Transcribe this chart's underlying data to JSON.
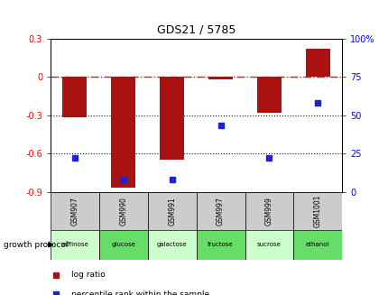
{
  "title": "GDS21 / 5785",
  "categories": [
    "GSM907",
    "GSM990",
    "GSM991",
    "GSM997",
    "GSM999",
    "GSM1001"
  ],
  "protocols": [
    "raffinose",
    "glucose",
    "galactose",
    "fructose",
    "sucrose",
    "ethanol"
  ],
  "log_ratio": [
    -0.32,
    -0.87,
    -0.65,
    -0.02,
    -0.28,
    0.22
  ],
  "percentile_rank": [
    22,
    8,
    8,
    43,
    22,
    58
  ],
  "bar_color": "#aa1111",
  "dot_color": "#2222cc",
  "ylim_left": [
    -0.9,
    0.3
  ],
  "ylim_right": [
    0,
    100
  ],
  "yticks_left": [
    -0.9,
    -0.6,
    -0.3,
    0.0,
    0.3
  ],
  "yticks_right": [
    0,
    25,
    50,
    75,
    100
  ],
  "hline_color": "#cc2222",
  "dotted_line_color": "#111111",
  "protocol_colors": [
    "#ccffcc",
    "#66dd66",
    "#ccffcc",
    "#66dd66",
    "#ccffcc",
    "#66dd66"
  ],
  "gsm_color": "#cccccc",
  "background_color": "#ffffff",
  "legend_label_ratio": "log ratio",
  "legend_label_pct": "percentile rank within the sample",
  "bar_width": 0.5
}
